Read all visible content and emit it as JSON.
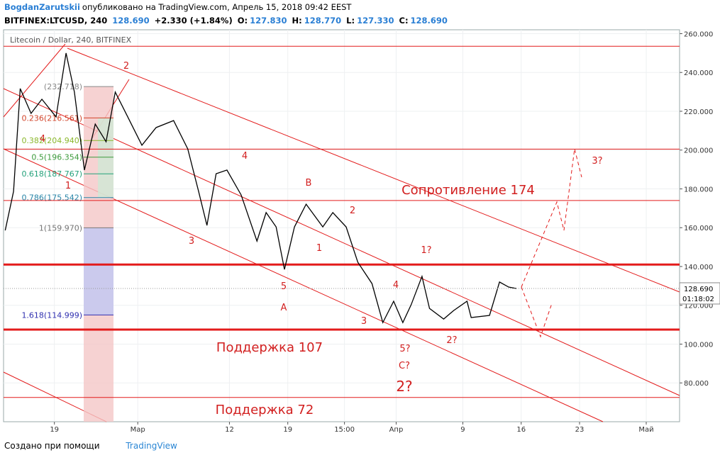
{
  "header": {
    "author": "BogdanZarutskii",
    "published": "опубликовано на TradingView.com, Апрель 15, 2018 09:42 EEST",
    "symbol": "BITFINEX:LTCUSD, 240",
    "price": "128.690",
    "change": "+2.330 (+1.84%)",
    "o_label": "O:",
    "o": "127.830",
    "h_label": "H:",
    "h": "128.770",
    "l_label": "L:",
    "l": "127.330",
    "c_label": "C:",
    "c": "128.690"
  },
  "footer": {
    "made_with": "Создано при помощи",
    "brand": "TradingView"
  },
  "chart_data": {
    "type": "line",
    "title": "Litecoin / Dollar, 240, BITFINEX",
    "x": [
      44.1,
      45.1,
      45.9,
      47.2,
      48.5,
      50.2,
      51.4,
      52.4,
      53.6,
      54.9,
      56.2,
      57.3,
      58.8,
      60.5,
      62.2,
      64.3,
      66.0,
      67.3,
      68.3,
      69.4,
      70.7,
      72.4,
      74.3,
      75.4,
      76.6,
      77.6,
      78.8,
      80.2,
      82.2,
      83.4,
      85.0,
      86.4,
      88.1,
      89.4,
      90.7,
      91.8,
      92.8,
      94.1,
      95.0,
      96.7,
      97.9,
      99.5,
      100.0,
      102.2,
      103.4,
      104.5,
      105.4
    ],
    "series": [
      {
        "name": "LTCUSD",
        "color": "#000000",
        "values": [
          158.6,
          178.7,
          231.7,
          218.9,
          226.2,
          217.1,
          250,
          229.9,
          189.7,
          213.4,
          204.3,
          229.9,
          217.1,
          202.5,
          211.6,
          215.2,
          200.6,
          178.7,
          161.2,
          187.8,
          189.7,
          176.9,
          153.1,
          167.8,
          160.4,
          138.5,
          160.4,
          172.1,
          160.4,
          167.8,
          160.4,
          142.2,
          131.2,
          111.1,
          122.1,
          111.1,
          120.3,
          134.9,
          118.4,
          112.9,
          117.3,
          122.1,
          113.7,
          114.8,
          132.0,
          129.4,
          128.69
        ]
      }
    ],
    "xlim": [
      43.9,
      125
    ],
    "xticks": [
      {
        "value": 50,
        "label": "19"
      },
      {
        "value": 60,
        "label": "Мар"
      },
      {
        "value": 71,
        "label": "12"
      },
      {
        "value": 78,
        "label": "19"
      },
      {
        "value": 84.8,
        "label": "15:00"
      },
      {
        "value": 91,
        "label": "Апр"
      },
      {
        "value": 99,
        "label": "9"
      },
      {
        "value": 106,
        "label": "16"
      },
      {
        "value": 113,
        "label": "23"
      },
      {
        "value": 121,
        "label": "Май"
      }
    ],
    "ylim": [
      60,
      262
    ],
    "yticks": [
      {
        "value": 80,
        "label": "80.000"
      },
      {
        "value": 100,
        "label": "100.000"
      },
      {
        "value": 120,
        "label": "120.000"
      },
      {
        "value": 140,
        "label": "140.000"
      },
      {
        "value": 160,
        "label": "160.000"
      },
      {
        "value": 180,
        "label": "180.000"
      },
      {
        "value": 200,
        "label": "200.000"
      },
      {
        "value": 220,
        "label": "220.000"
      },
      {
        "value": 240,
        "label": "240.000"
      },
      {
        "value": 260,
        "label": "260.000"
      }
    ],
    "grid": true,
    "last_price": {
      "value": 128.69,
      "label": "128.690"
    },
    "countdown": "01:18:02",
    "hlines": [
      253.5,
      200.5,
      174,
      72.5
    ],
    "thick_hlines": [
      141,
      107.5
    ],
    "level_color": "#e31b1b",
    "fib": [
      {
        "value": 232.718,
        "label": "(232.718)",
        "color": "#888888"
      },
      {
        "value": 216.561,
        "label": "0.236(216.561)",
        "color": "#d2452b"
      },
      {
        "value": 204.94,
        "label": "0.382(204.940)",
        "color": "#8bb82c"
      },
      {
        "value": 196.354,
        "label": "0.5(196.354)",
        "color": "#3c9a3c"
      },
      {
        "value": 187.767,
        "label": "0.618(187.767)",
        "color": "#23a17a"
      },
      {
        "value": 175.542,
        "label": "0.786(175.542)",
        "color": "#2a86a8"
      },
      {
        "value": 159.97,
        "label": "1(159.970)",
        "color": "#777777"
      },
      {
        "value": 114.999,
        "label": "1.618(114.999)",
        "color": "#3030b0"
      }
    ],
    "annotations": [
      "2",
      "4",
      "B",
      "2",
      "1",
      "3",
      "5",
      "A",
      "4",
      "1?",
      "3",
      "5?",
      "C?",
      "2?",
      "2?",
      "3?",
      "1",
      "4",
      "Сопротивление 174",
      "Поддержка 107",
      "Поддержка 72"
    ]
  }
}
